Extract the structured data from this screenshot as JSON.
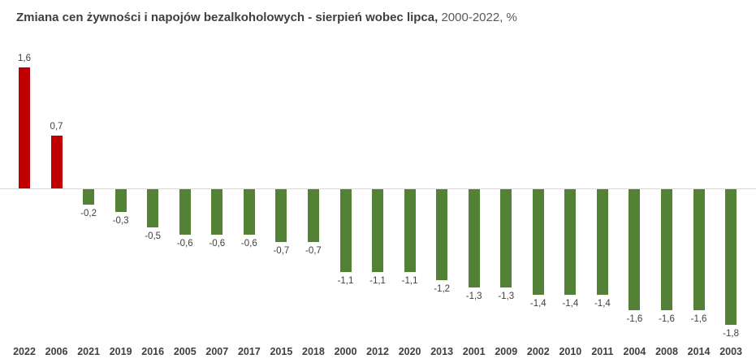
{
  "header": {
    "title_bold": "Zmiana cen żywności i napojów bezalkoholowych - sierpień wobec lipca,",
    "title_regular": " 2000-2022, %"
  },
  "chart_data": {
    "type": "bar",
    "title": "Zmiana cen żywności i napojów bezalkoholowych - sierpień wobec lipca, 2000-2022, %",
    "xlabel": "",
    "ylabel": "",
    "categories": [
      "2022",
      "2006",
      "2021",
      "2019",
      "2016",
      "2005",
      "2007",
      "2017",
      "2015",
      "2018",
      "2000",
      "2012",
      "2020",
      "2013",
      "2001",
      "2009",
      "2002",
      "2010",
      "2011",
      "2004",
      "2008",
      "2014",
      "2003"
    ],
    "values": [
      1.6,
      0.7,
      -0.2,
      -0.3,
      -0.5,
      -0.6,
      -0.6,
      -0.6,
      -0.7,
      -0.7,
      -1.1,
      -1.1,
      -1.1,
      -1.2,
      -1.3,
      -1.3,
      -1.4,
      -1.4,
      -1.4,
      -1.6,
      -1.6,
      -1.6,
      -1.8
    ],
    "value_labels": [
      "1,6",
      "0,7",
      "-0,2",
      "-0,3",
      "-0,5",
      "-0,6",
      "-0,6",
      "-0,6",
      "-0,7",
      "-0,7",
      "-1,1",
      "-1,1",
      "-1,1",
      "-1,2",
      "-1,3",
      "-1,3",
      "-1,4",
      "-1,4",
      "-1,4",
      "-1,6",
      "-1,6",
      "-1,6",
      "-1,8"
    ],
    "colors": {
      "positive": "#c00000",
      "negative": "#538135"
    },
    "ylim": [
      -1.9,
      1.7
    ],
    "baseline": 0,
    "grid": false,
    "legend": false,
    "sort_order": "descending by value"
  }
}
